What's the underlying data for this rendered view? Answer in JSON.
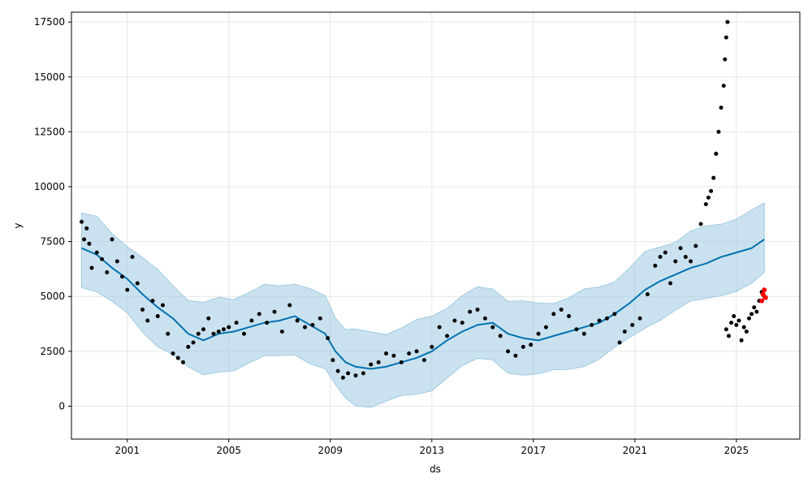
{
  "chart_data": {
    "type": "scatter",
    "title": "",
    "xlabel": "ds",
    "ylabel": "y",
    "xlim": [
      1998.8,
      2027.5
    ],
    "ylim": [
      -1500,
      17950
    ],
    "grid": true,
    "x_ticks": [
      {
        "value": 2001,
        "label": "2001"
      },
      {
        "value": 2005,
        "label": "2005"
      },
      {
        "value": 2009,
        "label": "2009"
      },
      {
        "value": 2013,
        "label": "2013"
      },
      {
        "value": 2017,
        "label": "2017"
      },
      {
        "value": 2021,
        "label": "2021"
      },
      {
        "value": 2025,
        "label": "2025"
      }
    ],
    "y_ticks": [
      {
        "value": 0,
        "label": "0"
      },
      {
        "value": 2500,
        "label": "2500"
      },
      {
        "value": 5000,
        "label": "5000"
      },
      {
        "value": 7500,
        "label": "7500"
      },
      {
        "value": 10000,
        "label": "10000"
      },
      {
        "value": 12500,
        "label": "12500"
      },
      {
        "value": 15000,
        "label": "15000"
      },
      {
        "value": 17500,
        "label": "17500"
      }
    ],
    "colors": {
      "observed": "#000000",
      "forecast": "#0072B2",
      "interval": "#9ecae1",
      "recent": "#ff0000",
      "grid": "#e6e6e6"
    },
    "observed": {
      "x": [
        1999.2,
        1999.3,
        1999.4,
        1999.5,
        1999.6,
        1999.8,
        2000.0,
        2000.2,
        2000.4,
        2000.6,
        2000.8,
        2001.0,
        2001.2,
        2001.4,
        2001.6,
        2001.8,
        2002.0,
        2002.2,
        2002.4,
        2002.6,
        2002.8,
        2003.0,
        2003.2,
        2003.4,
        2003.6,
        2003.8,
        2004.0,
        2004.2,
        2004.4,
        2004.6,
        2004.8,
        2005.0,
        2005.3,
        2005.6,
        2005.9,
        2006.2,
        2006.5,
        2006.8,
        2007.1,
        2007.4,
        2007.7,
        2008.0,
        2008.3,
        2008.6,
        2008.9,
        2009.1,
        2009.3,
        2009.5,
        2009.7,
        2010.0,
        2010.3,
        2010.6,
        2010.9,
        2011.2,
        2011.5,
        2011.8,
        2012.1,
        2012.4,
        2012.7,
        2013.0,
        2013.3,
        2013.6,
        2013.9,
        2014.2,
        2014.5,
        2014.8,
        2015.1,
        2015.4,
        2015.7,
        2016.0,
        2016.3,
        2016.6,
        2016.9,
        2017.2,
        2017.5,
        2017.8,
        2018.1,
        2018.4,
        2018.7,
        2019.0,
        2019.3,
        2019.6,
        2019.9,
        2020.2,
        2020.4,
        2020.6,
        2020.9,
        2021.2,
        2021.5,
        2021.8,
        2022.0,
        2022.2,
        2022.4,
        2022.6,
        2022.8,
        2023.0,
        2023.2,
        2023.4,
        2023.6,
        2023.8,
        2023.9,
        2024.0,
        2024.1,
        2024.2,
        2024.3,
        2024.4,
        2024.5,
        2024.55,
        2024.6,
        2024.65
      ],
      "y": [
        8400,
        7600,
        8100,
        7400,
        6300,
        7000,
        6700,
        6100,
        7600,
        6600,
        5900,
        5300,
        6800,
        5600,
        4400,
        3900,
        4800,
        4100,
        4600,
        3300,
        2400,
        2200,
        2000,
        2700,
        2900,
        3300,
        3500,
        4000,
        3300,
        3400,
        3500,
        3600,
        3800,
        3300,
        3900,
        4200,
        3800,
        4300,
        3400,
        4600,
        3900,
        3600,
        3700,
        4000,
        3100,
        2100,
        1600,
        1300,
        1500,
        1400,
        1500,
        1900,
        2000,
        2400,
        2300,
        2000,
        2400,
        2500,
        2100,
        2700,
        3600,
        3200,
        3900,
        3800,
        4300,
        4400,
        4000,
        3600,
        3200,
        2500,
        2300,
        2700,
        2800,
        3300,
        3600,
        4200,
        4400,
        4100,
        3500,
        3300,
        3700,
        3900,
        4000,
        4200,
        2900,
        3400,
        3700,
        4000,
        5100,
        6400,
        6800,
        7000,
        5600,
        6600,
        7200,
        6800,
        6600,
        7300,
        8300,
        9200,
        9500,
        9800,
        10400,
        11500,
        12500,
        13600,
        14600,
        15800,
        16800,
        17500
      ]
    },
    "observed_recent": {
      "x": [
        2024.6,
        2024.7,
        2024.8,
        2024.9,
        2025.0,
        2025.1,
        2025.2,
        2025.3,
        2025.4,
        2025.5,
        2025.6,
        2025.7,
        2025.8,
        2025.9,
        2026.0,
        2026.1
      ],
      "y": [
        3500,
        3200,
        3800,
        4100,
        3700,
        3900,
        3000,
        3600,
        3400,
        4000,
        4200,
        4500,
        4300,
        4800,
        5200,
        5000
      ]
    },
    "red_points": {
      "x": [
        2026.0,
        2026.05,
        2026.1,
        2026.15
      ],
      "y": [
        4800,
        5100,
        5300,
        4950
      ]
    },
    "forecast": {
      "x": [
        1999.2,
        1999.8,
        2000.4,
        2001.0,
        2001.6,
        2002.2,
        2002.8,
        2003.4,
        2004.0,
        2004.6,
        2005.2,
        2005.8,
        2006.4,
        2007.0,
        2007.6,
        2008.2,
        2008.8,
        2009.2,
        2009.6,
        2010.0,
        2010.6,
        2011.2,
        2011.8,
        2012.4,
        2013.0,
        2013.6,
        2014.2,
        2014.8,
        2015.4,
        2016.0,
        2016.6,
        2017.2,
        2017.8,
        2018.4,
        2019.0,
        2019.6,
        2020.2,
        2020.8,
        2021.4,
        2022.0,
        2022.6,
        2023.2,
        2023.8,
        2024.4,
        2025.0,
        2025.6,
        2026.1
      ],
      "y": [
        7200,
        6900,
        6300,
        5800,
        5100,
        4500,
        4000,
        3300,
        3000,
        3300,
        3400,
        3600,
        3800,
        3900,
        4100,
        3700,
        3300,
        2500,
        2000,
        1800,
        1700,
        1800,
        2000,
        2200,
        2500,
        3000,
        3400,
        3700,
        3800,
        3300,
        3100,
        3000,
        3200,
        3400,
        3600,
        3800,
        4200,
        4700,
        5300,
        5700,
        6000,
        6300,
        6500,
        6800,
        7000,
        7200,
        7600
      ]
    }
  }
}
